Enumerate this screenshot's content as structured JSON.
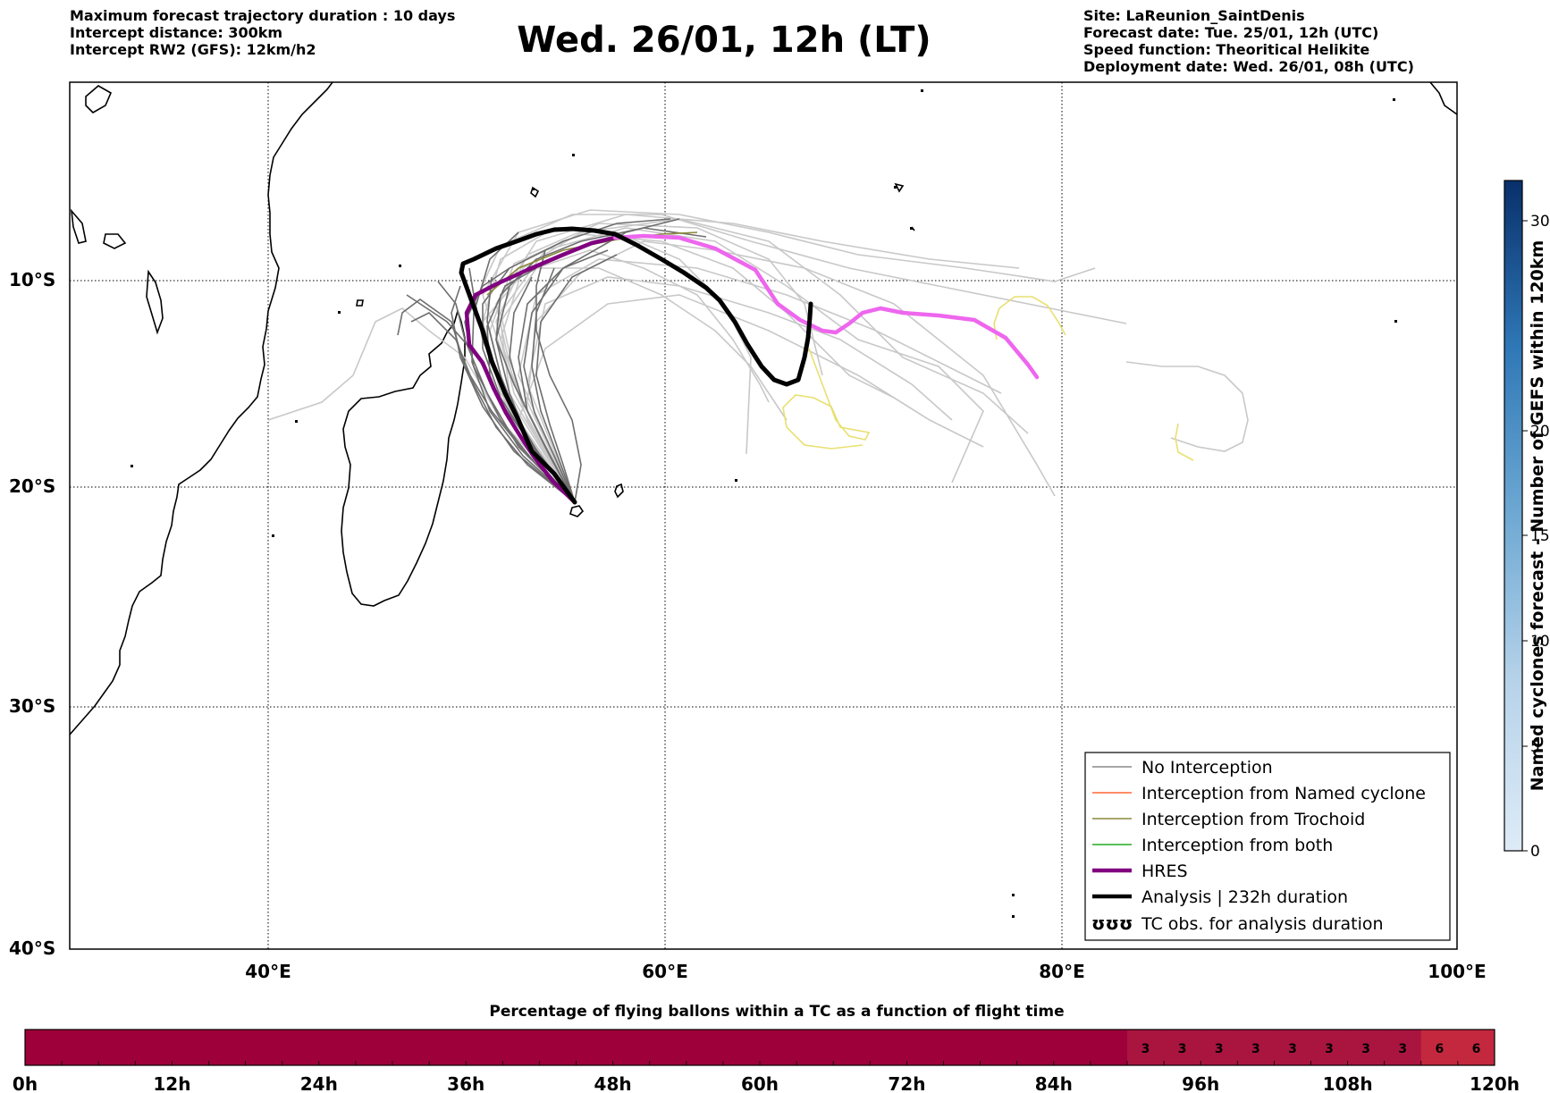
{
  "header": {
    "title": "Wed. 26/01, 12h (LT)",
    "left_lines": [
      "Maximum forecast trajectory duration : 10 days",
      "Intercept distance: 300km",
      "Intercept RW2 (GFS):  12km/h2"
    ],
    "right_lines": [
      "Site: LaReunion_SaintDenis",
      "Forecast date: Tue. 25/01, 12h (UTC)",
      "Speed function: Theoritical Helikite",
      "Deployment date: Wed. 26/01, 08h (UTC)"
    ]
  },
  "map": {
    "lon_range": [
      30,
      100
    ],
    "lat_range": [
      -40,
      2
    ],
    "lon_ticks": [
      "40°E",
      "60°E",
      "80°E",
      "100°E"
    ],
    "lat_ticks": [
      "10°S",
      "20°S",
      "30°S",
      "40°S"
    ],
    "grid": true
  },
  "legend": {
    "items": [
      {
        "label": "No Interception",
        "color": "#888888",
        "style": "thin"
      },
      {
        "label": "Interception from Named cyclone",
        "color": "#ff6633",
        "style": "thin"
      },
      {
        "label": "Interception from Trochoid",
        "color": "#8a8a3a",
        "style": "thin"
      },
      {
        "label": "Interception from both",
        "color": "#22aa22",
        "style": "thin"
      },
      {
        "label": "HRES",
        "color": "#800080",
        "style": "thick"
      },
      {
        "label": "Analysis | 232h duration",
        "color": "#000000",
        "style": "thick"
      },
      {
        "label": "TC obs. for analysis duration",
        "color": "#000000",
        "style": "symbol",
        "symbol": "ʊʊʊ"
      }
    ]
  },
  "colorbar_right": {
    "label": "Named cyclones forecast - Number of GEFS within 120km",
    "ticks": [
      "0",
      "5",
      "10",
      "15",
      "20",
      "30"
    ],
    "min_color": "#deebf7",
    "max_color": "#08306b"
  },
  "colorbar_bottom": {
    "title": "Percentage of flying ballons within a TC as a function of flight time",
    "ticks": [
      "0h",
      "12h",
      "24h",
      "36h",
      "48h",
      "60h",
      "72h",
      "84h",
      "96h",
      "108h",
      "120h"
    ],
    "cells": [
      "",
      "",
      "",
      "",
      "",
      "",
      "",
      "",
      "",
      "",
      "",
      "",
      "",
      "",
      "",
      "",
      "",
      "",
      "",
      "",
      "",
      "",
      "",
      "",
      "",
      "",
      "",
      "",
      "",
      "",
      "3",
      "3",
      "3",
      "3",
      "3",
      "3",
      "3",
      "3",
      "6",
      "6"
    ],
    "base_color": "#9e003a",
    "mid_color": "#aa1540",
    "high_color": "#c4283f"
  }
}
